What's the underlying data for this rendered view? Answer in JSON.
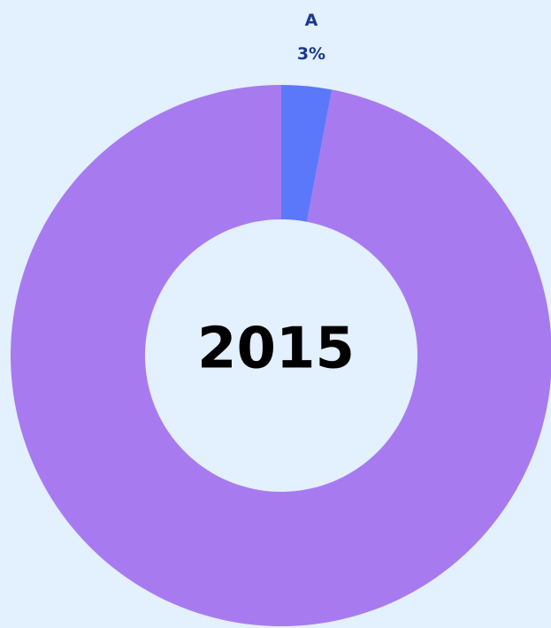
{
  "chart_data": {
    "type": "donut",
    "categories": [
      "A",
      null
    ],
    "values": [
      3,
      97
    ],
    "value_labels": [
      "3%",
      null
    ],
    "colors": [
      "#5b78fb",
      "#a87af0"
    ],
    "center_label": "2015"
  }
}
